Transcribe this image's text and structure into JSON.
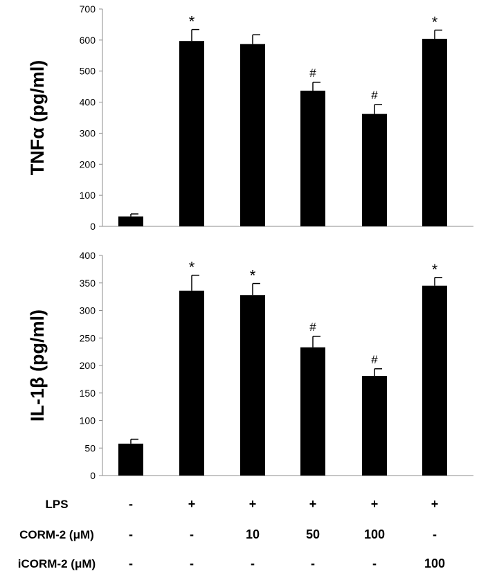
{
  "chart_data": [
    {
      "type": "bar",
      "ylabel": "TNFα (pg/ml)",
      "ylim": [
        0,
        700
      ],
      "yticks": [
        0,
        100,
        200,
        300,
        400,
        500,
        600,
        700
      ],
      "values": [
        32,
        597,
        587,
        437,
        362,
        604
      ],
      "errors": [
        8,
        37,
        30,
        27,
        30,
        28
      ],
      "annotations": [
        "",
        "*",
        "",
        "#",
        "#",
        "*"
      ],
      "color": "#000000"
    },
    {
      "type": "bar",
      "ylabel": "IL-1β (pg/ml)",
      "ylim": [
        0,
        400
      ],
      "yticks": [
        0,
        50,
        100,
        150,
        200,
        250,
        300,
        350,
        400
      ],
      "values": [
        58,
        336,
        328,
        233,
        181,
        345
      ],
      "errors": [
        8,
        28,
        21,
        20,
        13,
        15
      ],
      "annotations": [
        "",
        "*",
        "*",
        "#",
        "#",
        "*"
      ],
      "color": "#000000"
    }
  ],
  "conditions": [
    {
      "label": "LPS",
      "values": [
        "-",
        "+",
        "+",
        "+",
        "+",
        "+"
      ]
    },
    {
      "label": "CORM-2 (μM)",
      "values": [
        "-",
        "-",
        "10",
        "50",
        "100",
        "-"
      ]
    },
    {
      "label": "iCORM-2 (μM)",
      "values": [
        "-",
        "-",
        "-",
        "-",
        "-",
        "100"
      ]
    }
  ]
}
